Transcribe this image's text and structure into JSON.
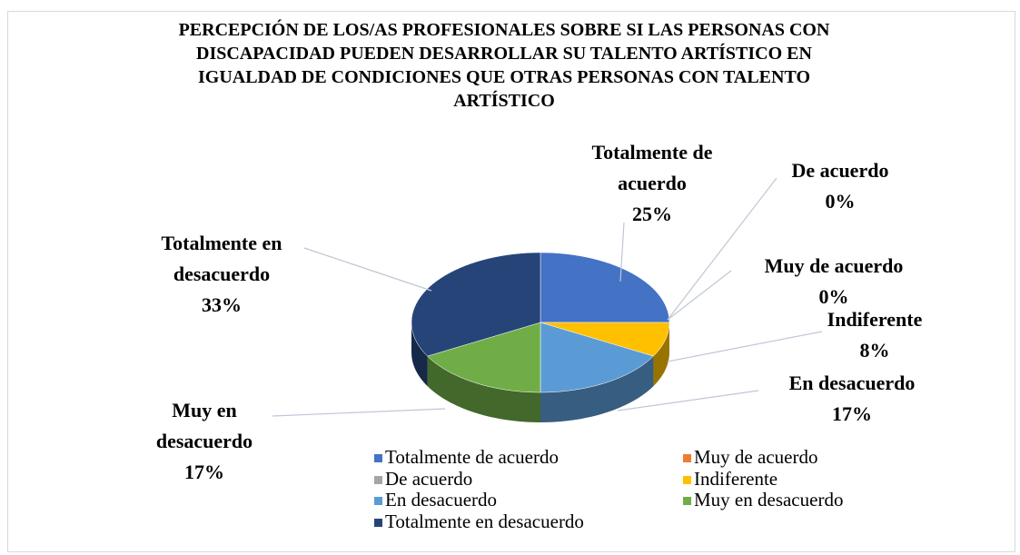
{
  "chart_data": {
    "type": "pie",
    "title": "PERCEPCIÓN DE LOS/AS PROFESIONALES SOBRE SI LAS PERSONAS CON DISCAPACIDAD PUEDEN DESARROLLAR SU TALENTO ARTÍSTICO EN IGUALDAD DE CONDICIONES QUE OTRAS PERSONAS CON TALENTO ARTÍSTICO",
    "categories": [
      "Totalmente de acuerdo",
      "Muy de acuerdo",
      "De acuerdo",
      "Indiferente",
      "En desacuerdo",
      "Muy en desacuerdo",
      "Totalmente en desacuerdo"
    ],
    "values": [
      25,
      0,
      0,
      8,
      17,
      17,
      33
    ],
    "value_labels": [
      "25%",
      "0%",
      "0%",
      "8%",
      "17%",
      "17%",
      "33%"
    ],
    "colors": [
      "#4472c4",
      "#ed7d31",
      "#a5a5a5",
      "#ffc000",
      "#5b9bd5",
      "#70ad47",
      "#264478"
    ],
    "legend": "bottom"
  }
}
